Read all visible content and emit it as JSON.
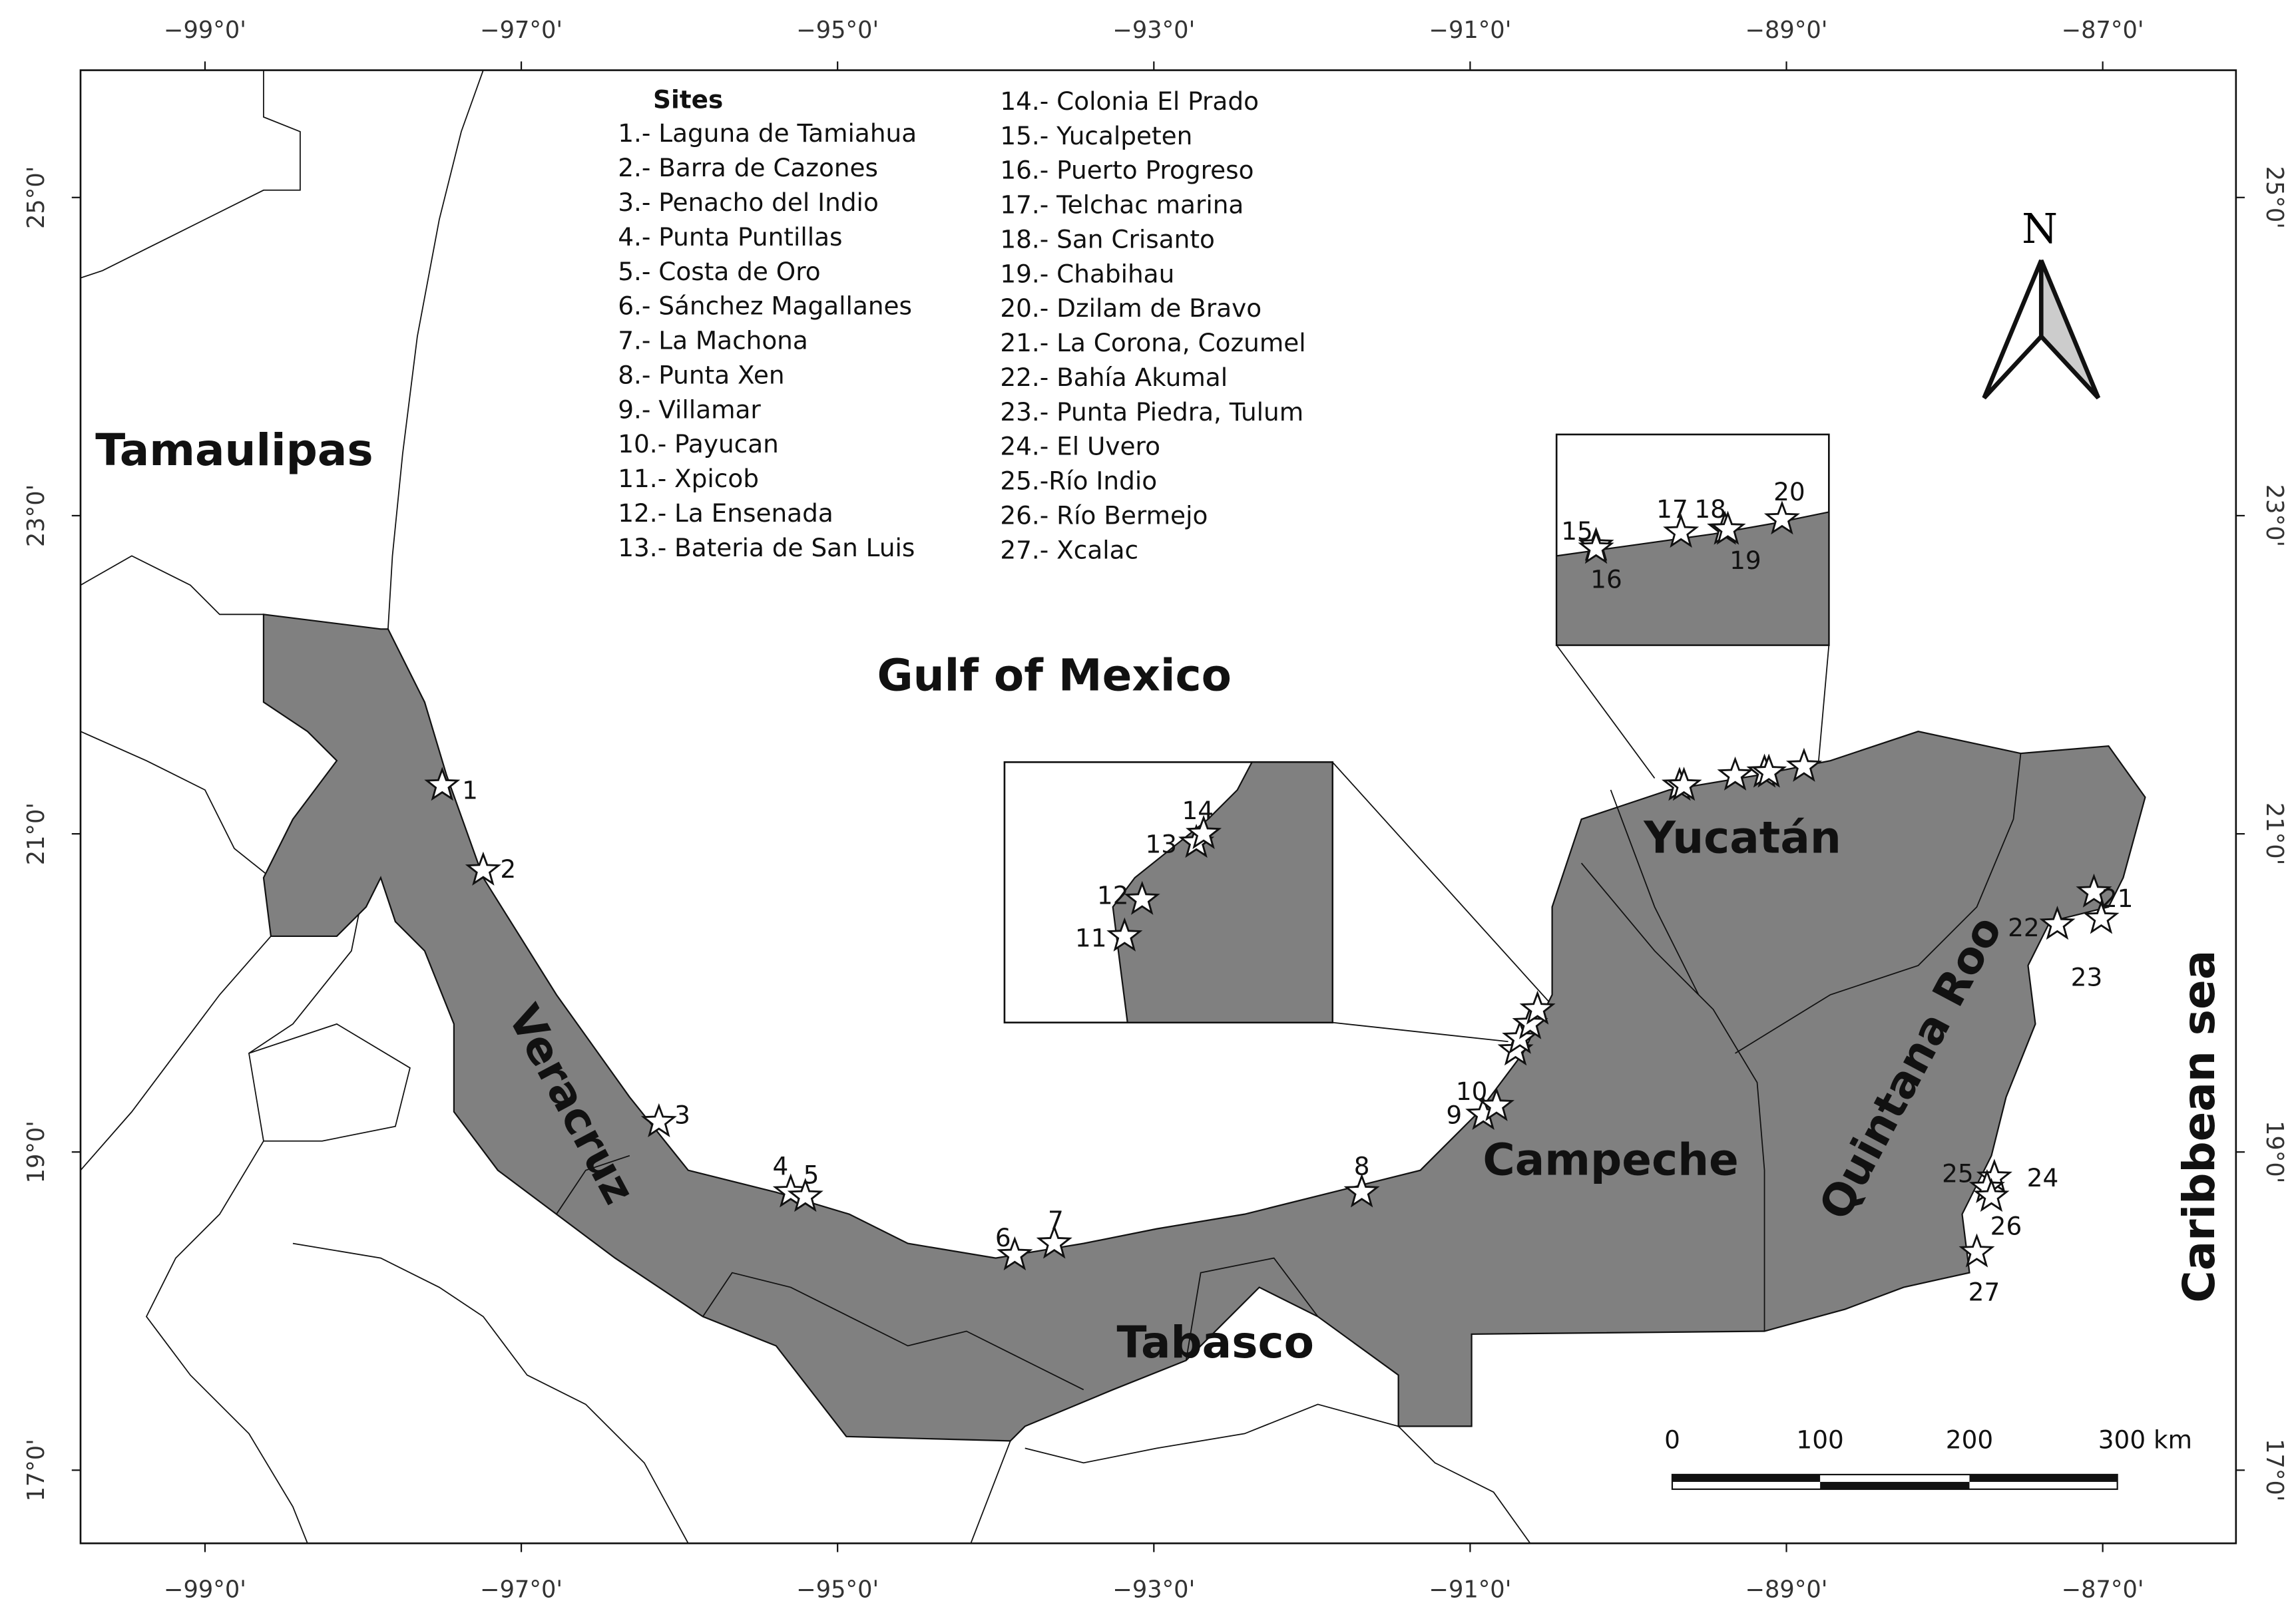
{
  "lon_ticks": [
    {
      "value": -99,
      "label": "−99°0'"
    },
    {
      "value": -97,
      "label": "−97°0'"
    },
    {
      "value": -95,
      "label": "−95°0'"
    },
    {
      "value": -93,
      "label": "−93°0'"
    },
    {
      "value": -91,
      "label": "−91°0'"
    },
    {
      "value": -89,
      "label": "−89°0'"
    },
    {
      "value": -87,
      "label": "−87°0'"
    }
  ],
  "lat_ticks": [
    {
      "value": 25,
      "label": "25°0'"
    },
    {
      "value": 23,
      "label": "23°0'"
    },
    {
      "value": 21,
      "label": "21°0'"
    },
    {
      "value": 19,
      "label": "19°0'"
    },
    {
      "value": 17,
      "label": "17°0'"
    }
  ],
  "sites_heading": "Sites",
  "sites": [
    "1.- Laguna de Tamiahua",
    "2.- Barra de Cazones",
    "3.- Penacho del Indio",
    "4.- Punta Puntillas",
    "5.- Costa de Oro",
    "6.- Sánchez Magallanes",
    "7.- La Machona",
    "8.- Punta Xen",
    "9.- Villamar",
    "10.- Payucan",
    "11.- Xpicob",
    "12.- La Ensenada",
    "13.- Bateria de San Luis",
    "14.- Colonia El Prado",
    "15.- Yucalpeten",
    "16.- Puerto Progreso",
    "17.- Telchac marina",
    "18.- San  Crisanto",
    "19.- Chabihau",
    "20.- Dzilam de Bravo",
    "21.- La Corona, Cozumel",
    "22.- Bahía Akumal",
    "23.- Punta Piedra, Tulum",
    "24.- El Uvero",
    "25.-Río Indio",
    "26.- Río Bermejo",
    "27.- Xcalac"
  ],
  "markers": [
    "1",
    "2",
    "3",
    "4",
    "5",
    "6",
    "7",
    "8",
    "9",
    "10",
    "11",
    "12",
    "13",
    "14",
    "15",
    "16",
    "17",
    "18",
    "19",
    "20",
    "21",
    "22",
    "23",
    "24",
    "25",
    "26",
    "27"
  ],
  "regions": [
    "Tamaulipas",
    "Veracruz",
    "Tabasco",
    "Campeche",
    "Yucatán",
    "Quintana Roo",
    "Gulf of Mexico",
    "Caribbean sea"
  ],
  "scale_labels": [
    "0",
    "100",
    "200",
    "300 km"
  ],
  "north": "N"
}
